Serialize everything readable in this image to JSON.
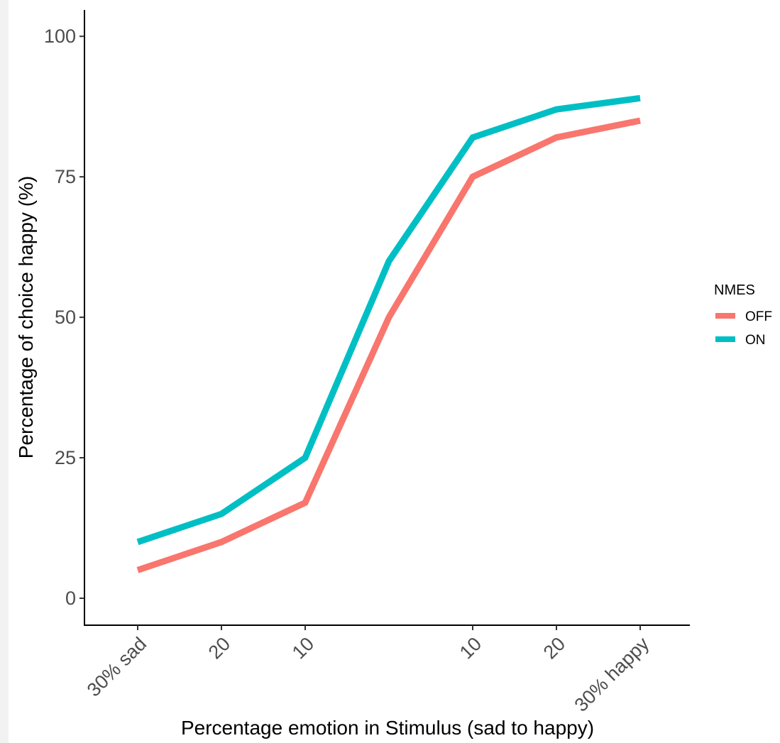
{
  "chart_data": {
    "type": "line",
    "xlabel": "Percentage emotion in Stimulus (sad to happy)",
    "ylabel": "Percentage of choice happy (%)",
    "categories": [
      "30% sad",
      "20",
      "10",
      "",
      "10",
      "20",
      "30% happy"
    ],
    "ylim": [
      -4.8,
      104.7
    ],
    "yticks": [
      0,
      25,
      50,
      75,
      100
    ],
    "grid": false,
    "legend": {
      "title": "NMES",
      "position": "right"
    },
    "series": [
      {
        "name": "OFF",
        "color": "#F8766D",
        "values": [
          5,
          10,
          17,
          50,
          75,
          82,
          85
        ]
      },
      {
        "name": "ON",
        "color": "#00BFC4",
        "values": [
          10,
          15,
          25,
          60,
          82,
          87,
          89
        ]
      }
    ]
  }
}
